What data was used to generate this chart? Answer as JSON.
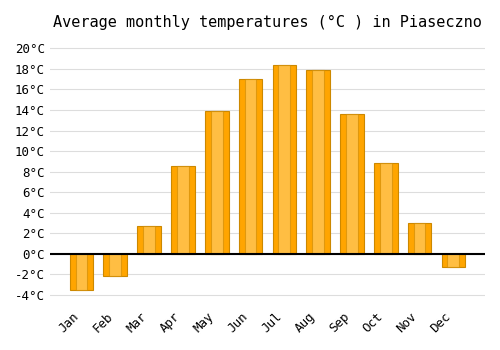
{
  "months": [
    "Jan",
    "Feb",
    "Mar",
    "Apr",
    "May",
    "Jun",
    "Jul",
    "Aug",
    "Sep",
    "Oct",
    "Nov",
    "Dec"
  ],
  "temperatures": [
    -3.5,
    -2.2,
    2.7,
    8.5,
    13.9,
    17.0,
    18.4,
    17.9,
    13.6,
    8.8,
    3.0,
    -1.3
  ],
  "bar_color_face": "#FFA500",
  "bar_color_edge": "#CC8800",
  "background_color": "#FFFFFF",
  "grid_color": "#DDDDDD",
  "title": "Average monthly temperatures (°C ) in Piaseczno",
  "title_fontsize": 11,
  "tick_fontsize": 9,
  "ylim": [
    -5,
    21
  ],
  "yticks": [
    -4,
    -2,
    0,
    2,
    4,
    6,
    8,
    10,
    12,
    14,
    16,
    18,
    20
  ],
  "ytick_labels": [
    "-4°C",
    "-2°C",
    "0°C",
    "2°C",
    "4°C",
    "6°C",
    "8°C",
    "10°C",
    "12°C",
    "14°C",
    "16°C",
    "18°C",
    "20°C"
  ],
  "zero_line_color": "#000000",
  "font_family": "monospace"
}
